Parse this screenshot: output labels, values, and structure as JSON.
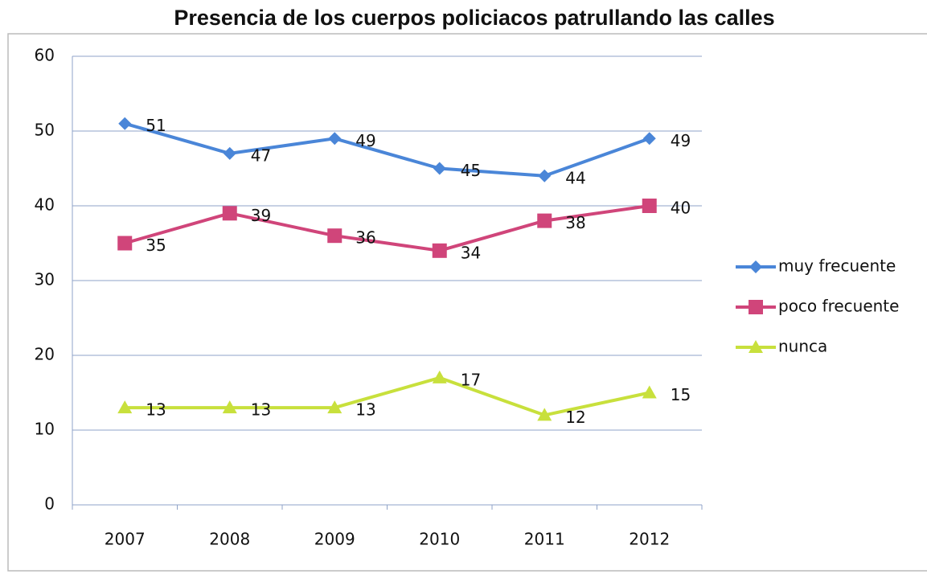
{
  "chart_data": {
    "type": "line",
    "title": "Presencia de los cuerpos policiacos patrullando las calles",
    "categories": [
      "2007",
      "2008",
      "2009",
      "2010",
      "2011",
      "2012"
    ],
    "series": [
      {
        "name": "muy frecuente",
        "color": "#4a86d8",
        "marker": "diamond",
        "values": [
          51,
          47,
          49,
          45,
          44,
          49
        ]
      },
      {
        "name": "poco frecuente",
        "color": "#d0457a",
        "marker": "square",
        "values": [
          35,
          39,
          36,
          34,
          38,
          40
        ]
      },
      {
        "name": "nunca",
        "color": "#c8e03c",
        "marker": "triangle",
        "values": [
          13,
          13,
          13,
          17,
          12,
          15
        ]
      }
    ],
    "ylim": [
      0,
      60
    ],
    "yticks": [
      0,
      10,
      20,
      30,
      40,
      50,
      60
    ],
    "grid": true,
    "legend": "right",
    "data_labels": true
  }
}
